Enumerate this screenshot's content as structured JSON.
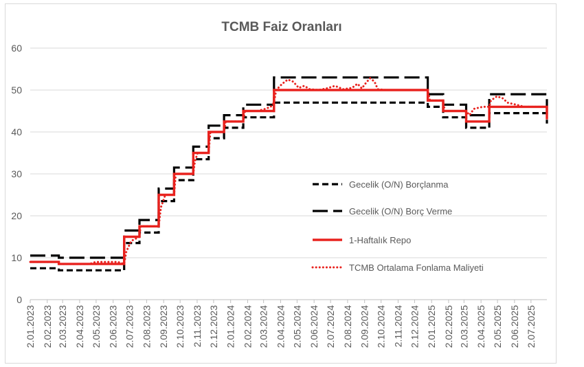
{
  "chart_data": {
    "type": "line",
    "title": "TCMB Faiz Oranları",
    "xlabel": "",
    "ylabel": "",
    "x_start": "2023-01-02",
    "x_end": "2025-07-31",
    "ylim": [
      0,
      60
    ],
    "yticks": [
      0,
      10,
      20,
      30,
      40,
      50,
      60
    ],
    "xtick_labels": [
      "2.01.2023",
      "2.02.2023",
      "2.03.2023",
      "2.04.2023",
      "2.05.2023",
      "2.06.2023",
      "2.07.2023",
      "2.08.2023",
      "2.09.2023",
      "2.10.2023",
      "2.11.2023",
      "2.12.2023",
      "2.01.2024",
      "2.02.2024",
      "2.03.2024",
      "2.04.2024",
      "2.05.2024",
      "2.06.2024",
      "2.07.2024",
      "2.08.2024",
      "2.09.2024",
      "2.10.2024",
      "2.11.2024",
      "2.12.2024",
      "2.01.2025",
      "2.02.2025",
      "2.03.2025",
      "2.04.2025",
      "2.05.2025",
      "2.06.2025",
      "2.07.2025"
    ],
    "xtick_dates": [
      "2023-01-02",
      "2023-02-02",
      "2023-03-02",
      "2023-04-02",
      "2023-05-02",
      "2023-06-02",
      "2023-07-02",
      "2023-08-02",
      "2023-09-02",
      "2023-10-02",
      "2023-11-02",
      "2023-12-02",
      "2024-01-02",
      "2024-02-02",
      "2024-03-02",
      "2024-04-02",
      "2024-05-02",
      "2024-06-02",
      "2024-07-02",
      "2024-08-02",
      "2024-09-02",
      "2024-10-02",
      "2024-11-02",
      "2024-12-02",
      "2025-01-02",
      "2025-02-02",
      "2025-03-02",
      "2025-04-02",
      "2025-05-02",
      "2025-06-02",
      "2025-07-02"
    ],
    "grid": true,
    "legend_position": "center-right",
    "series": [
      {
        "name": "Gecelik (O/N) Borçlanma",
        "style": "dashed",
        "color": "#000000",
        "points": [
          [
            "2023-01-02",
            7.5
          ],
          [
            "2023-02-23",
            7.5
          ],
          [
            "2023-02-23",
            7.0
          ],
          [
            "2023-06-22",
            7.0
          ],
          [
            "2023-06-22",
            13.5
          ],
          [
            "2023-07-20",
            13.5
          ],
          [
            "2023-07-20",
            16.0
          ],
          [
            "2023-08-24",
            16.0
          ],
          [
            "2023-08-24",
            23.5
          ],
          [
            "2023-09-21",
            23.5
          ],
          [
            "2023-09-21",
            28.5
          ],
          [
            "2023-10-26",
            28.5
          ],
          [
            "2023-10-26",
            33.5
          ],
          [
            "2023-11-23",
            33.5
          ],
          [
            "2023-11-23",
            38.5
          ],
          [
            "2023-12-21",
            38.5
          ],
          [
            "2023-12-21",
            41.0
          ],
          [
            "2024-01-25",
            41.0
          ],
          [
            "2024-01-25",
            43.5
          ],
          [
            "2024-03-21",
            43.5
          ],
          [
            "2024-03-21",
            47.0
          ],
          [
            "2024-12-26",
            47.0
          ],
          [
            "2024-12-26",
            46.0
          ],
          [
            "2025-01-23",
            46.0
          ],
          [
            "2025-01-23",
            43.5
          ],
          [
            "2025-03-06",
            43.5
          ],
          [
            "2025-03-06",
            41.0
          ],
          [
            "2025-04-17",
            41.0
          ],
          [
            "2025-04-17",
            44.5
          ],
          [
            "2025-07-31",
            44.5
          ]
        ]
      },
      {
        "name": "Gecelik (O/N) Borç Verme",
        "style": "longdash",
        "color": "#000000",
        "points": [
          [
            "2023-01-02",
            10.5
          ],
          [
            "2023-02-23",
            10.5
          ],
          [
            "2023-02-23",
            10.0
          ],
          [
            "2023-06-22",
            10.0
          ],
          [
            "2023-06-22",
            16.5
          ],
          [
            "2023-07-20",
            16.5
          ],
          [
            "2023-07-20",
            19.0
          ],
          [
            "2023-08-24",
            19.0
          ],
          [
            "2023-08-24",
            26.5
          ],
          [
            "2023-09-21",
            26.5
          ],
          [
            "2023-09-21",
            31.5
          ],
          [
            "2023-10-26",
            31.5
          ],
          [
            "2023-10-26",
            36.5
          ],
          [
            "2023-11-23",
            36.5
          ],
          [
            "2023-11-23",
            41.5
          ],
          [
            "2023-12-21",
            41.5
          ],
          [
            "2023-12-21",
            44.0
          ],
          [
            "2024-01-25",
            44.0
          ],
          [
            "2024-01-25",
            46.5
          ],
          [
            "2024-03-21",
            46.5
          ],
          [
            "2024-03-21",
            53.0
          ],
          [
            "2024-12-26",
            53.0
          ],
          [
            "2024-12-26",
            49.0
          ],
          [
            "2025-01-23",
            49.0
          ],
          [
            "2025-01-23",
            46.5
          ],
          [
            "2025-03-06",
            46.5
          ],
          [
            "2025-03-06",
            44.0
          ],
          [
            "2025-04-17",
            44.0
          ],
          [
            "2025-04-17",
            49.0
          ],
          [
            "2025-07-31",
            49.0
          ],
          [
            "2025-07-31",
            42.0
          ]
        ]
      },
      {
        "name": "1-Haftalık Repo",
        "style": "solid",
        "color": "#e8221e",
        "points": [
          [
            "2023-01-02",
            9.0
          ],
          [
            "2023-02-23",
            9.0
          ],
          [
            "2023-02-23",
            8.5
          ],
          [
            "2023-06-22",
            8.5
          ],
          [
            "2023-06-22",
            15.0
          ],
          [
            "2023-07-20",
            15.0
          ],
          [
            "2023-07-20",
            17.5
          ],
          [
            "2023-08-24",
            17.5
          ],
          [
            "2023-08-24",
            25.0
          ],
          [
            "2023-09-21",
            25.0
          ],
          [
            "2023-09-21",
            30.0
          ],
          [
            "2023-10-26",
            30.0
          ],
          [
            "2023-10-26",
            35.0
          ],
          [
            "2023-11-23",
            35.0
          ],
          [
            "2023-11-23",
            40.0
          ],
          [
            "2023-12-21",
            40.0
          ],
          [
            "2023-12-21",
            42.5
          ],
          [
            "2024-01-25",
            42.5
          ],
          [
            "2024-01-25",
            45.0
          ],
          [
            "2024-03-21",
            45.0
          ],
          [
            "2024-03-21",
            50.0
          ],
          [
            "2024-12-26",
            50.0
          ],
          [
            "2024-12-26",
            47.5
          ],
          [
            "2025-01-23",
            47.5
          ],
          [
            "2025-01-23",
            45.0
          ],
          [
            "2025-03-06",
            45.0
          ],
          [
            "2025-03-06",
            42.5
          ],
          [
            "2025-04-17",
            42.5
          ],
          [
            "2025-04-17",
            46.0
          ],
          [
            "2025-07-31",
            46.0
          ],
          [
            "2025-07-31",
            43.0
          ]
        ]
      },
      {
        "name": "TCMB Ortalama Fonlama Maliyeti",
        "style": "dotted",
        "color": "#e8221e",
        "points": [
          [
            "2023-01-02",
            9.0
          ],
          [
            "2023-02-23",
            9.0
          ],
          [
            "2023-02-23",
            8.5
          ],
          [
            "2023-04-20",
            8.5
          ],
          [
            "2023-05-01",
            9.0
          ],
          [
            "2023-06-10",
            9.0
          ],
          [
            "2023-06-22",
            8.5
          ],
          [
            "2023-06-26",
            11.5
          ],
          [
            "2023-07-05",
            14.0
          ],
          [
            "2023-07-20",
            15.0
          ],
          [
            "2023-07-22",
            17.5
          ],
          [
            "2023-08-24",
            17.5
          ],
          [
            "2023-08-28",
            22.0
          ],
          [
            "2023-09-05",
            25.0
          ],
          [
            "2023-09-21",
            25.0
          ],
          [
            "2023-09-24",
            30.0
          ],
          [
            "2023-10-26",
            30.0
          ],
          [
            "2023-10-29",
            33.0
          ],
          [
            "2023-11-03",
            35.0
          ],
          [
            "2023-11-23",
            35.0
          ],
          [
            "2023-11-26",
            40.0
          ],
          [
            "2023-12-21",
            40.0
          ],
          [
            "2023-12-24",
            42.5
          ],
          [
            "2024-01-25",
            42.5
          ],
          [
            "2024-01-28",
            45.0
          ],
          [
            "2024-02-20",
            45.0
          ],
          [
            "2024-03-05",
            45.5
          ],
          [
            "2024-03-15",
            46.0
          ],
          [
            "2024-03-21",
            47.0
          ],
          [
            "2024-03-25",
            50.0
          ],
          [
            "2024-04-05",
            51.5
          ],
          [
            "2024-04-15",
            52.5
          ],
          [
            "2024-04-25",
            52.0
          ],
          [
            "2024-05-05",
            50.5
          ],
          [
            "2024-05-15",
            51.0
          ],
          [
            "2024-05-25",
            50.2
          ],
          [
            "2024-06-10",
            50.0
          ],
          [
            "2024-06-25",
            50.4
          ],
          [
            "2024-07-10",
            51.0
          ],
          [
            "2024-07-25",
            50.2
          ],
          [
            "2024-08-10",
            50.5
          ],
          [
            "2024-08-20",
            51.5
          ],
          [
            "2024-08-28",
            50.4
          ],
          [
            "2024-09-05",
            51.8
          ],
          [
            "2024-09-12",
            52.8
          ],
          [
            "2024-09-20",
            52.0
          ],
          [
            "2024-09-26",
            50.2
          ],
          [
            "2024-10-10",
            50.0
          ],
          [
            "2024-12-26",
            50.0
          ],
          [
            "2024-12-30",
            47.5
          ],
          [
            "2025-01-23",
            47.5
          ],
          [
            "2025-01-26",
            45.0
          ],
          [
            "2025-03-06",
            45.0
          ],
          [
            "2025-03-12",
            44.0
          ],
          [
            "2025-03-20",
            45.5
          ],
          [
            "2025-04-05",
            46.0
          ],
          [
            "2025-04-17",
            46.0
          ],
          [
            "2025-04-20",
            47.5
          ],
          [
            "2025-05-01",
            48.5
          ],
          [
            "2025-05-12",
            48.0
          ],
          [
            "2025-05-20",
            47.0
          ],
          [
            "2025-06-05",
            46.5
          ],
          [
            "2025-06-20",
            46.0
          ],
          [
            "2025-07-31",
            46.0
          ]
        ]
      }
    ]
  }
}
